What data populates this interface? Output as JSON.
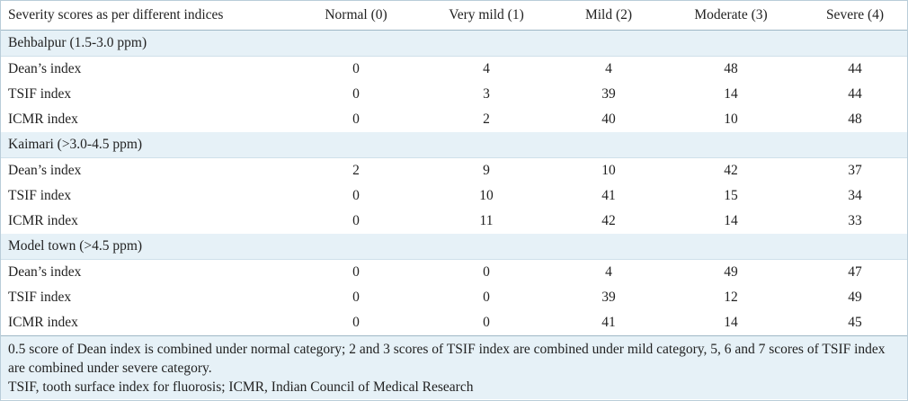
{
  "table": {
    "headers": [
      "Severity scores as per different indices",
      "Normal (0)",
      "Very mild (1)",
      "Mild (2)",
      "Moderate (3)",
      "Severe (4)"
    ],
    "groups": [
      {
        "title": "Behbalpur (1.5-3.0 ppm)",
        "rows": [
          {
            "label": "Dean’s index",
            "values": [
              "0",
              "4",
              "4",
              "48",
              "44"
            ]
          },
          {
            "label": "TSIF index",
            "values": [
              "0",
              "3",
              "39",
              "14",
              "44"
            ]
          },
          {
            "label": "ICMR index",
            "values": [
              "0",
              "2",
              "40",
              "10",
              "48"
            ]
          }
        ]
      },
      {
        "title": "Kaimari (>3.0-4.5 ppm)",
        "rows": [
          {
            "label": "Dean’s index",
            "values": [
              "2",
              "9",
              "10",
              "42",
              "37"
            ]
          },
          {
            "label": "TSIF index",
            "values": [
              "0",
              "10",
              "41",
              "15",
              "34"
            ]
          },
          {
            "label": "ICMR index",
            "values": [
              "0",
              "11",
              "42",
              "14",
              "33"
            ]
          }
        ]
      },
      {
        "title": "Model town (>4.5 ppm)",
        "rows": [
          {
            "label": "Dean’s index",
            "values": [
              "0",
              "0",
              "4",
              "49",
              "47"
            ]
          },
          {
            "label": "TSIF index",
            "values": [
              "0",
              "0",
              "39",
              "12",
              "49"
            ]
          },
          {
            "label": "ICMR index",
            "values": [
              "0",
              "0",
              "41",
              "14",
              "45"
            ]
          }
        ]
      }
    ]
  },
  "footnotes": {
    "note1": "0.5 score of Dean index is combined under normal category; 2 and 3 scores of TSIF index are combined under mild category, 5, 6 and 7 scores of TSIF index are combined under severe category.",
    "note2": "TSIF, tooth surface index for fluorosis; ICMR, Indian Council of Medical Research"
  }
}
